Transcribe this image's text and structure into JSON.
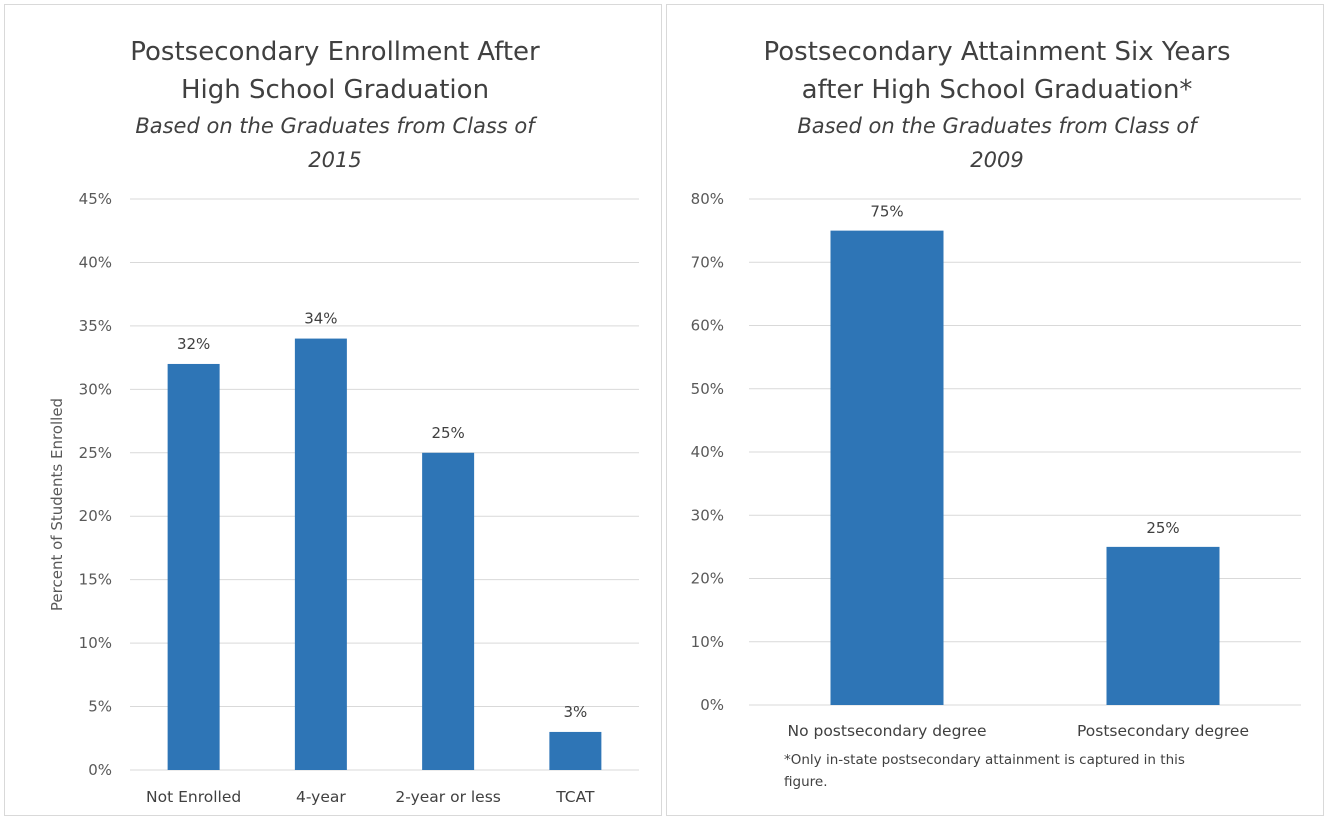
{
  "chart_data": [
    {
      "type": "bar",
      "title": [
        "Postsecondary Enrollment After",
        "High School Graduation"
      ],
      "subtitle": [
        "Based on the Graduates from Class of",
        "2015"
      ],
      "xlabel": "",
      "ylabel": "Percent of Students Enrolled",
      "categories": [
        "Not Enrolled",
        "4-year",
        "2-year or less",
        "TCAT"
      ],
      "values": [
        0.32,
        0.34,
        0.25,
        0.03
      ],
      "data_labels": [
        "32%",
        "34%",
        "25%",
        "3%"
      ],
      "ylim": [
        0,
        0.45
      ],
      "yticks": [
        0,
        0.05,
        0.1,
        0.15,
        0.2,
        0.25,
        0.3,
        0.35,
        0.4,
        0.45
      ],
      "ytick_labels": [
        "0%",
        "5%",
        "10%",
        "15%",
        "20%",
        "25%",
        "30%",
        "35%",
        "40%",
        "45%"
      ],
      "grid": true,
      "bar_color": "#2e75b6"
    },
    {
      "type": "bar",
      "title": [
        "Postsecondary Attainment Six Years",
        "after High School Graduation*"
      ],
      "subtitle": [
        "Based on the Graduates from Class of",
        "2009"
      ],
      "xlabel": "",
      "ylabel": "",
      "categories": [
        "No postsecondary degree",
        "Postsecondary degree"
      ],
      "values": [
        0.75,
        0.25
      ],
      "data_labels": [
        "75%",
        "25%"
      ],
      "ylim": [
        0,
        0.8
      ],
      "yticks": [
        0,
        0.1,
        0.2,
        0.3,
        0.4,
        0.5,
        0.6,
        0.7,
        0.8
      ],
      "ytick_labels": [
        "0%",
        "10%",
        "20%",
        "30%",
        "40%",
        "50%",
        "60%",
        "70%",
        "80%"
      ],
      "grid": true,
      "bar_color": "#2e75b6",
      "footnote": [
        "*Only in-state postsecondary attainment is captured in this",
        "figure."
      ]
    }
  ]
}
